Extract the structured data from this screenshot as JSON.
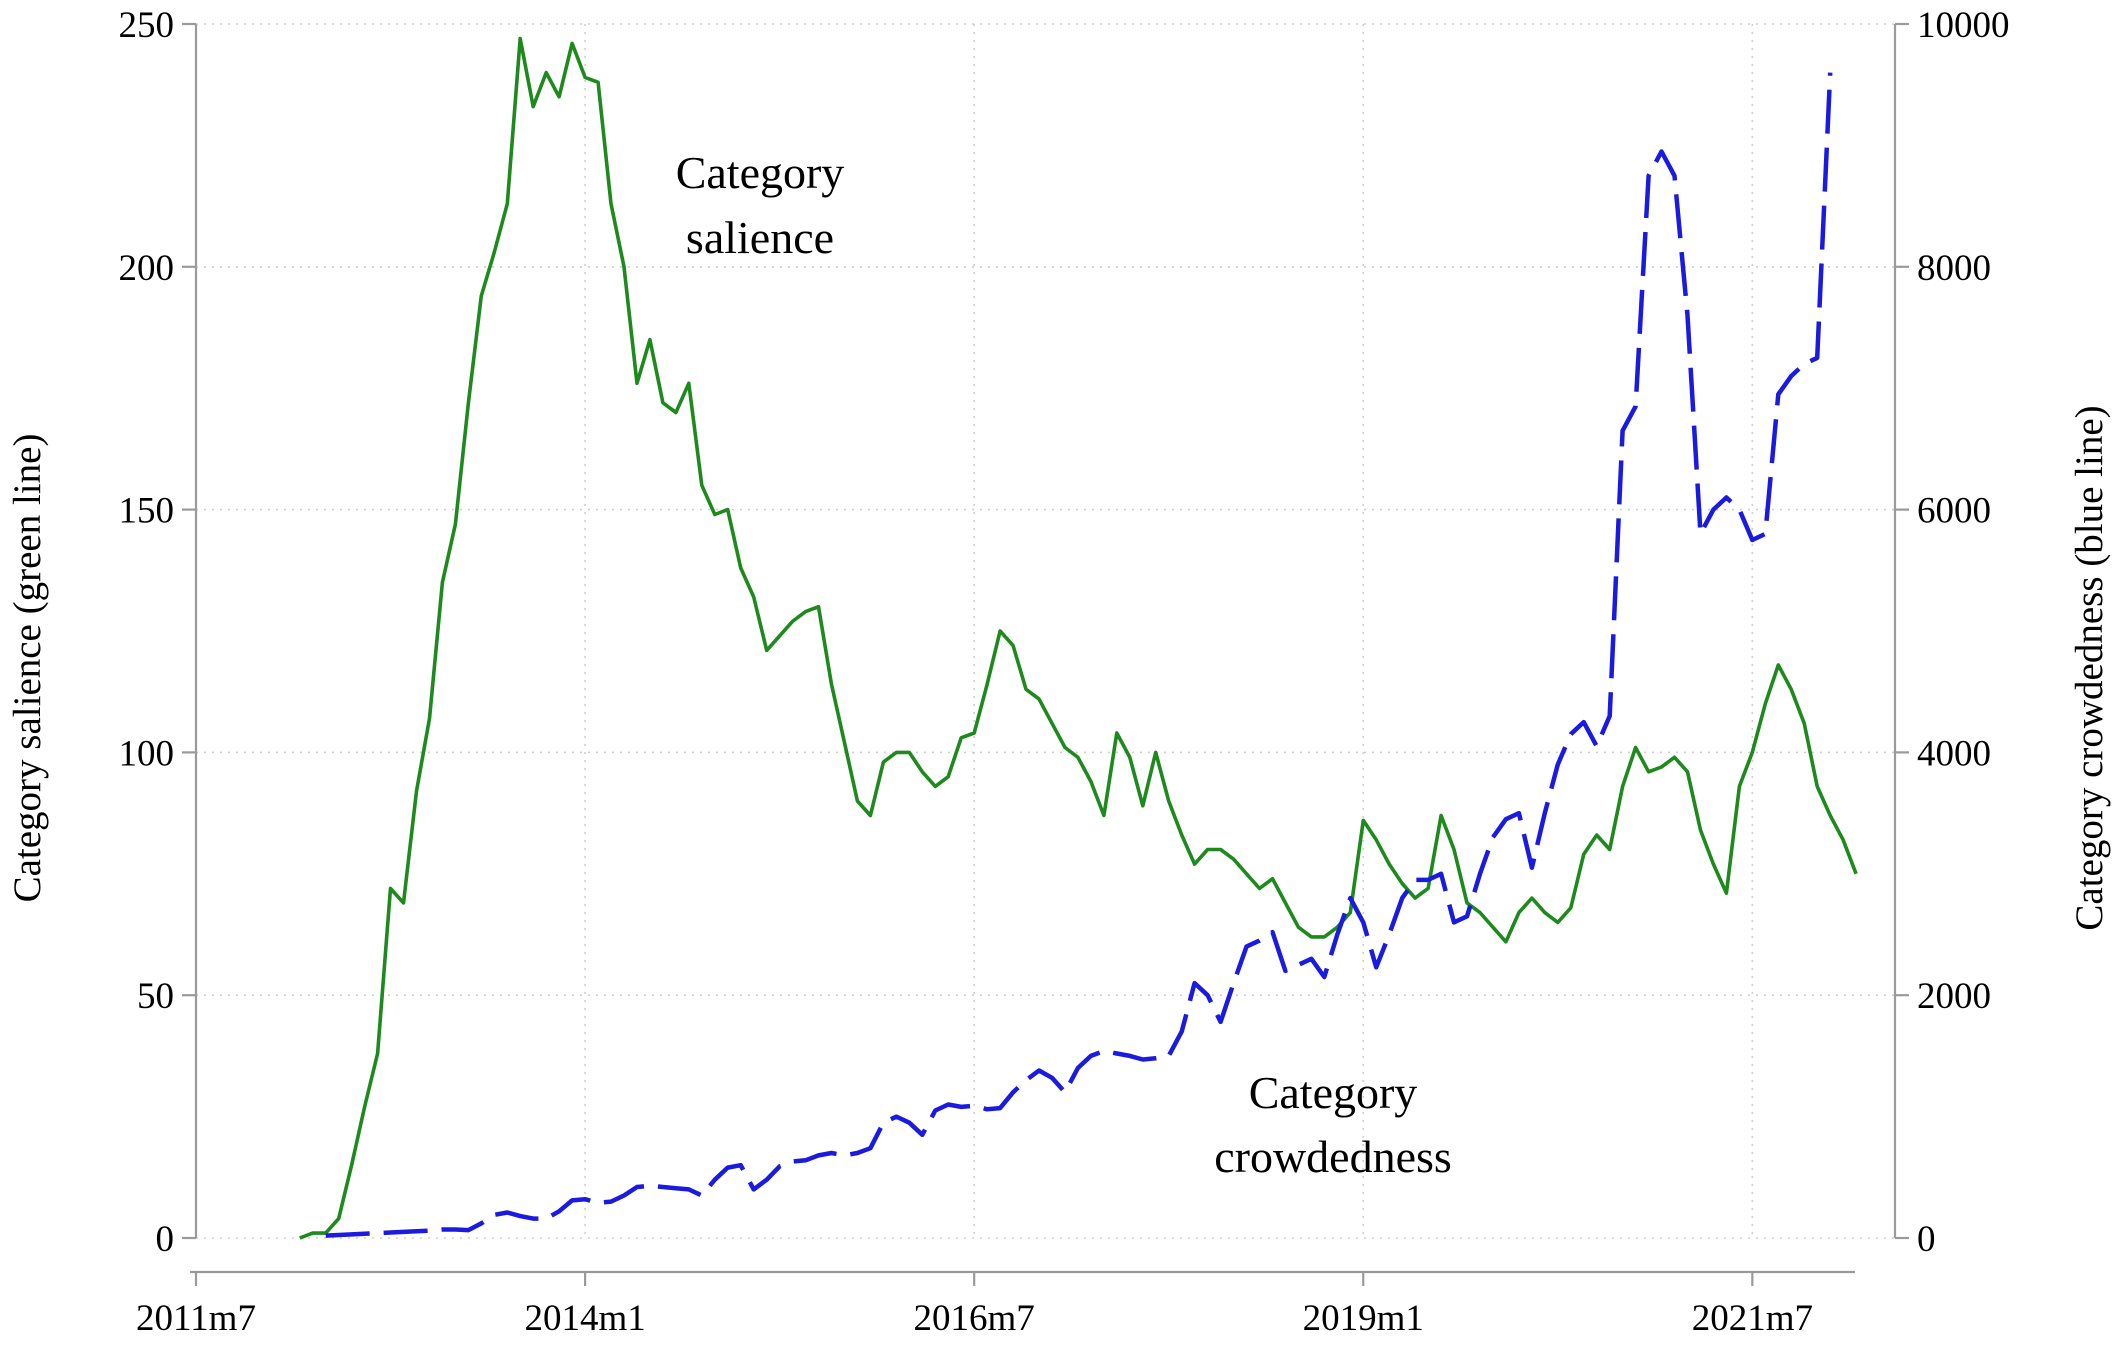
{
  "chart_data": {
    "type": "line",
    "title": "",
    "xlabel": "",
    "x_axis": {
      "type": "month",
      "range": [
        "2011-07",
        "2022-06"
      ],
      "ticks": [
        {
          "date": "2011-07",
          "label": "2011m7"
        },
        {
          "date": "2014-01",
          "label": "2014m1"
        },
        {
          "date": "2016-07",
          "label": "2016m7"
        },
        {
          "date": "2019-01",
          "label": "2019m1"
        },
        {
          "date": "2021-07",
          "label": "2021m7"
        }
      ]
    },
    "y_left": {
      "label": "Category salience (green line)",
      "range": [
        0,
        250
      ],
      "ticks": [
        0,
        50,
        100,
        150,
        200,
        250
      ]
    },
    "y_right": {
      "label": "Category crowdedness (blue line)",
      "range": [
        0,
        10000
      ],
      "ticks": [
        0,
        2000,
        4000,
        6000,
        8000,
        10000
      ]
    },
    "grid": true,
    "legend": "none",
    "annotations": [
      {
        "id": "salience",
        "lines": [
          "Category",
          "salience"
        ]
      },
      {
        "id": "crowdedness",
        "lines": [
          "Category",
          "crowdedness"
        ]
      }
    ],
    "series": [
      {
        "id": "salience",
        "axis": "left",
        "color": "#1e8a1e",
        "style": "solid",
        "points": [
          [
            "2012-03",
            0
          ],
          [
            "2012-04",
            1
          ],
          [
            "2012-05",
            1
          ],
          [
            "2012-06",
            4
          ],
          [
            "2012-07",
            15
          ],
          [
            "2012-08",
            27
          ],
          [
            "2012-09",
            38
          ],
          [
            "2012-10",
            72
          ],
          [
            "2012-11",
            69
          ],
          [
            "2012-12",
            92
          ],
          [
            "2013-01",
            107
          ],
          [
            "2013-02",
            135
          ],
          [
            "2013-03",
            147
          ],
          [
            "2013-04",
            172
          ],
          [
            "2013-05",
            194
          ],
          [
            "2013-06",
            203
          ],
          [
            "2013-07",
            213
          ],
          [
            "2013-08",
            247
          ],
          [
            "2013-09",
            233
          ],
          [
            "2013-10",
            240
          ],
          [
            "2013-11",
            235
          ],
          [
            "2013-12",
            246
          ],
          [
            "2014-01",
            239
          ],
          [
            "2014-02",
            238
          ],
          [
            "2014-03",
            213
          ],
          [
            "2014-04",
            200
          ],
          [
            "2014-05",
            176
          ],
          [
            "2014-06",
            185
          ],
          [
            "2014-07",
            172
          ],
          [
            "2014-08",
            170
          ],
          [
            "2014-09",
            176
          ],
          [
            "2014-10",
            155
          ],
          [
            "2014-11",
            149
          ],
          [
            "2014-12",
            150
          ],
          [
            "2015-01",
            138
          ],
          [
            "2015-02",
            132
          ],
          [
            "2015-03",
            121
          ],
          [
            "2015-04",
            124
          ],
          [
            "2015-05",
            127
          ],
          [
            "2015-06",
            129
          ],
          [
            "2015-07",
            130
          ],
          [
            "2015-08",
            114
          ],
          [
            "2015-09",
            102
          ],
          [
            "2015-10",
            90
          ],
          [
            "2015-11",
            87
          ],
          [
            "2015-12",
            98
          ],
          [
            "2016-01",
            100
          ],
          [
            "2016-02",
            100
          ],
          [
            "2016-03",
            96
          ],
          [
            "2016-04",
            93
          ],
          [
            "2016-05",
            95
          ],
          [
            "2016-06",
            103
          ],
          [
            "2016-07",
            104
          ],
          [
            "2016-08",
            114
          ],
          [
            "2016-09",
            125
          ],
          [
            "2016-10",
            122
          ],
          [
            "2016-11",
            113
          ],
          [
            "2016-12",
            111
          ],
          [
            "2017-01",
            106
          ],
          [
            "2017-02",
            101
          ],
          [
            "2017-03",
            99
          ],
          [
            "2017-04",
            94
          ],
          [
            "2017-05",
            87
          ],
          [
            "2017-06",
            104
          ],
          [
            "2017-07",
            99
          ],
          [
            "2017-08",
            89
          ],
          [
            "2017-09",
            100
          ],
          [
            "2017-10",
            90
          ],
          [
            "2017-11",
            83
          ],
          [
            "2017-12",
            77
          ],
          [
            "2018-01",
            80
          ],
          [
            "2018-02",
            80
          ],
          [
            "2018-03",
            78
          ],
          [
            "2018-04",
            75
          ],
          [
            "2018-05",
            72
          ],
          [
            "2018-06",
            74
          ],
          [
            "2018-07",
            69
          ],
          [
            "2018-08",
            64
          ],
          [
            "2018-09",
            62
          ],
          [
            "2018-10",
            62
          ],
          [
            "2018-11",
            64
          ],
          [
            "2018-12",
            67
          ],
          [
            "2019-01",
            86
          ],
          [
            "2019-02",
            82
          ],
          [
            "2019-03",
            77
          ],
          [
            "2019-04",
            73
          ],
          [
            "2019-05",
            70
          ],
          [
            "2019-06",
            72
          ],
          [
            "2019-07",
            87
          ],
          [
            "2019-08",
            80
          ],
          [
            "2019-09",
            69
          ],
          [
            "2019-10",
            67
          ],
          [
            "2019-11",
            64
          ],
          [
            "2019-12",
            61
          ],
          [
            "2020-01",
            67
          ],
          [
            "2020-02",
            70
          ],
          [
            "2020-03",
            67
          ],
          [
            "2020-04",
            65
          ],
          [
            "2020-05",
            68
          ],
          [
            "2020-06",
            79
          ],
          [
            "2020-07",
            83
          ],
          [
            "2020-08",
            80
          ],
          [
            "2020-09",
            93
          ],
          [
            "2020-10",
            101
          ],
          [
            "2020-11",
            96
          ],
          [
            "2020-12",
            97
          ],
          [
            "2021-01",
            99
          ],
          [
            "2021-02",
            96
          ],
          [
            "2021-03",
            84
          ],
          [
            "2021-04",
            77
          ],
          [
            "2021-05",
            71
          ],
          [
            "2021-06",
            93
          ],
          [
            "2021-07",
            100
          ],
          [
            "2021-08",
            110
          ],
          [
            "2021-09",
            118
          ],
          [
            "2021-10",
            113
          ],
          [
            "2021-11",
            106
          ],
          [
            "2021-12",
            93
          ],
          [
            "2022-01",
            87
          ],
          [
            "2022-02",
            82
          ],
          [
            "2022-03",
            75
          ]
        ]
      },
      {
        "id": "crowdedness",
        "axis": "right",
        "color": "#1a1ae0",
        "style": "dashed",
        "points": [
          [
            "2012-05",
            20
          ],
          [
            "2012-06",
            25
          ],
          [
            "2012-07",
            30
          ],
          [
            "2012-08",
            35
          ],
          [
            "2012-09",
            40
          ],
          [
            "2012-10",
            45
          ],
          [
            "2012-11",
            50
          ],
          [
            "2012-12",
            55
          ],
          [
            "2013-01",
            60
          ],
          [
            "2013-02",
            70
          ],
          [
            "2013-03",
            70
          ],
          [
            "2013-04",
            65
          ],
          [
            "2013-05",
            120
          ],
          [
            "2013-06",
            190
          ],
          [
            "2013-07",
            210
          ],
          [
            "2013-08",
            180
          ],
          [
            "2013-09",
            160
          ],
          [
            "2013-10",
            160
          ],
          [
            "2013-11",
            220
          ],
          [
            "2013-12",
            310
          ],
          [
            "2014-01",
            320
          ],
          [
            "2014-02",
            290
          ],
          [
            "2014-03",
            300
          ],
          [
            "2014-04",
            350
          ],
          [
            "2014-05",
            420
          ],
          [
            "2014-06",
            430
          ],
          [
            "2014-07",
            420
          ],
          [
            "2014-08",
            410
          ],
          [
            "2014-09",
            400
          ],
          [
            "2014-10",
            350
          ],
          [
            "2014-11",
            480
          ],
          [
            "2014-12",
            580
          ],
          [
            "2015-01",
            600
          ],
          [
            "2015-02",
            400
          ],
          [
            "2015-03",
            480
          ],
          [
            "2015-04",
            590
          ],
          [
            "2015-05",
            630
          ],
          [
            "2015-06",
            640
          ],
          [
            "2015-07",
            680
          ],
          [
            "2015-08",
            700
          ],
          [
            "2015-09",
            680
          ],
          [
            "2015-10",
            700
          ],
          [
            "2015-11",
            740
          ],
          [
            "2015-12",
            950
          ],
          [
            "2016-01",
            1000
          ],
          [
            "2016-02",
            950
          ],
          [
            "2016-03",
            850
          ],
          [
            "2016-04",
            1050
          ],
          [
            "2016-05",
            1100
          ],
          [
            "2016-06",
            1080
          ],
          [
            "2016-07",
            1090
          ],
          [
            "2016-08",
            1060
          ],
          [
            "2016-09",
            1070
          ],
          [
            "2016-10",
            1200
          ],
          [
            "2016-11",
            1300
          ],
          [
            "2016-12",
            1380
          ],
          [
            "2017-01",
            1320
          ],
          [
            "2017-02",
            1200
          ],
          [
            "2017-03",
            1400
          ],
          [
            "2017-04",
            1500
          ],
          [
            "2017-05",
            1540
          ],
          [
            "2017-06",
            1520
          ],
          [
            "2017-07",
            1500
          ],
          [
            "2017-08",
            1470
          ],
          [
            "2017-09",
            1480
          ],
          [
            "2017-10",
            1500
          ],
          [
            "2017-11",
            1700
          ],
          [
            "2017-12",
            2100
          ],
          [
            "2018-01",
            2000
          ],
          [
            "2018-02",
            1780
          ],
          [
            "2018-03",
            2100
          ],
          [
            "2018-04",
            2400
          ],
          [
            "2018-05",
            2450
          ],
          [
            "2018-06",
            2520
          ],
          [
            "2018-07",
            2200
          ],
          [
            "2018-08",
            2250
          ],
          [
            "2018-09",
            2300
          ],
          [
            "2018-10",
            2150
          ],
          [
            "2018-11",
            2500
          ],
          [
            "2018-12",
            2800
          ],
          [
            "2019-01",
            2600
          ],
          [
            "2019-02",
            2230
          ],
          [
            "2019-03",
            2500
          ],
          [
            "2019-04",
            2800
          ],
          [
            "2019-05",
            2950
          ],
          [
            "2019-06",
            2950
          ],
          [
            "2019-07",
            3000
          ],
          [
            "2019-08",
            2600
          ],
          [
            "2019-09",
            2650
          ],
          [
            "2019-10",
            3000
          ],
          [
            "2019-11",
            3300
          ],
          [
            "2019-12",
            3450
          ],
          [
            "2020-01",
            3500
          ],
          [
            "2020-02",
            3050
          ],
          [
            "2020-03",
            3500
          ],
          [
            "2020-04",
            3900
          ],
          [
            "2020-05",
            4150
          ],
          [
            "2020-06",
            4250
          ],
          [
            "2020-07",
            4050
          ],
          [
            "2020-08",
            4300
          ],
          [
            "2020-09",
            6650
          ],
          [
            "2020-10",
            6850
          ],
          [
            "2020-11",
            8750
          ],
          [
            "2020-12",
            8950
          ],
          [
            "2021-01",
            8750
          ],
          [
            "2021-02",
            7600
          ],
          [
            "2021-03",
            5800
          ],
          [
            "2021-04",
            6000
          ],
          [
            "2021-05",
            6100
          ],
          [
            "2021-06",
            6000
          ],
          [
            "2021-07",
            5750
          ],
          [
            "2021-08",
            5800
          ],
          [
            "2021-09",
            6950
          ],
          [
            "2021-10",
            7100
          ],
          [
            "2021-11",
            7200
          ],
          [
            "2021-12",
            7250
          ],
          [
            "2022-01",
            9600
          ]
        ]
      }
    ]
  }
}
